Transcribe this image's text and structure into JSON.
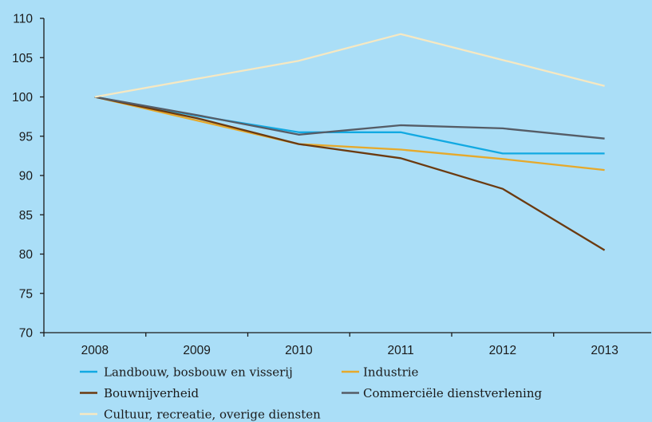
{
  "chart_data": {
    "type": "line",
    "categories": [
      "2008",
      "2009",
      "2010",
      "2011",
      "2012",
      "2013"
    ],
    "series": [
      {
        "name": "Landbouw, bosbouw en visserij",
        "color": "#12a9e2",
        "values": [
          100,
          97.6,
          95.5,
          95.5,
          92.8,
          92.8
        ]
      },
      {
        "name": "Industrie",
        "color": "#e6a92b",
        "values": [
          100,
          97.0,
          94.0,
          93.3,
          92.1,
          90.7
        ]
      },
      {
        "name": "Bouwnijverheid",
        "color": "#6b3a10",
        "values": [
          100,
          97.3,
          94.0,
          92.2,
          88.3,
          80.5
        ]
      },
      {
        "name": "Commerciële dienstverlening",
        "color": "#555c66",
        "values": [
          100,
          97.7,
          95.2,
          96.4,
          96.0,
          94.7
        ]
      },
      {
        "name": "Cultuur, recreatie, overige diensten",
        "color": "#f6e8c2",
        "values": [
          100,
          102.3,
          104.6,
          108.0,
          104.7,
          101.4
        ]
      }
    ],
    "ylim": [
      70,
      110
    ],
    "yticks": [
      70,
      75,
      80,
      85,
      90,
      95,
      100,
      105,
      110
    ],
    "grid": false,
    "legend": "bottom",
    "background": "#aadef7",
    "axis_color": "#1a1a1a"
  }
}
